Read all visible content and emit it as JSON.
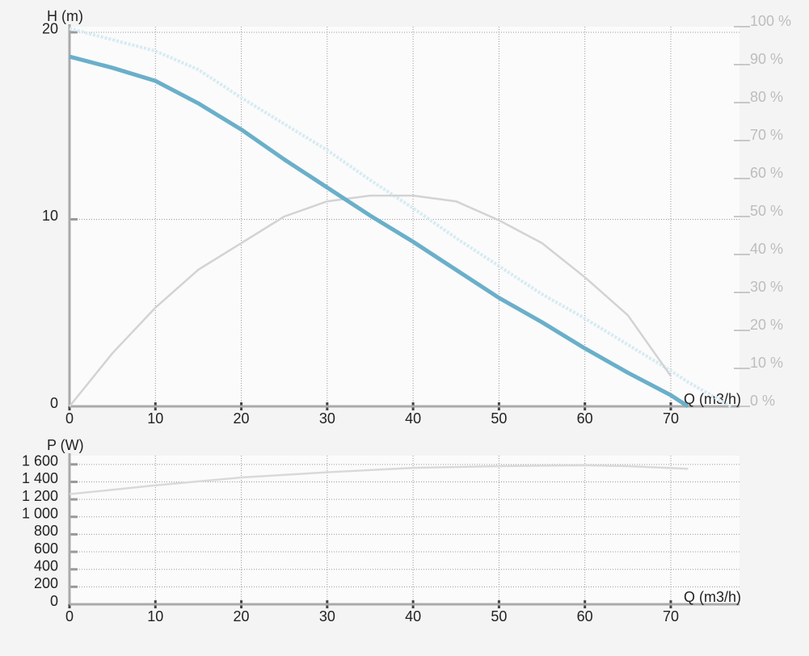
{
  "chart_data": [
    {
      "type": "line",
      "ylabel": "H (m)",
      "xlabel": "Q (m3/h)",
      "grid": true,
      "x": [
        0,
        5,
        10,
        15,
        20,
        25,
        30,
        35,
        40,
        45,
        50,
        55,
        60,
        65,
        70,
        72,
        77
      ],
      "xlim": [
        0,
        78
      ],
      "xticks": [
        0,
        10,
        20,
        30,
        40,
        50,
        60,
        70
      ],
      "ylim": [
        0,
        20.3
      ],
      "yticks": [
        0,
        10,
        20
      ],
      "y2lim": [
        0,
        100
      ],
      "y2ticks": [
        {
          "value": 0,
          "label": "0 %"
        },
        {
          "value": 10,
          "label": "10 %"
        },
        {
          "value": 20,
          "label": "20 %"
        },
        {
          "value": 30,
          "label": "30 %"
        },
        {
          "value": 40,
          "label": "40 %"
        },
        {
          "value": 50,
          "label": "50 %"
        },
        {
          "value": 60,
          "label": "60 %"
        },
        {
          "value": 70,
          "label": "70 %"
        },
        {
          "value": 80,
          "label": "80 %"
        },
        {
          "value": 90,
          "label": "90 %"
        },
        {
          "value": 100,
          "label": "100 %"
        }
      ],
      "series": [
        {
          "color": "#d6ebf3",
          "line_style": "dotted",
          "values": [
            20.2,
            19.6,
            19.0,
            18.0,
            16.5,
            15.1,
            13.7,
            12.1,
            10.6,
            9.0,
            7.5,
            6.0,
            4.7,
            3.3,
            1.9,
            1.3,
            0
          ]
        },
        {
          "color": "#d3d3d3",
          "line_style": "solid",
          "axis": "y2",
          "values": [
            0,
            14,
            26,
            36,
            43,
            50,
            54,
            55.5,
            55.5,
            54,
            49,
            43,
            34,
            24,
            8,
            null,
            null
          ]
        },
        {
          "color": "#6aafca",
          "line_style": "thick",
          "values": [
            18.7,
            18.1,
            17.4,
            16.2,
            14.8,
            13.2,
            11.7,
            10.2,
            8.8,
            7.3,
            5.8,
            4.5,
            3.1,
            1.8,
            0.6,
            0,
            null
          ]
        }
      ]
    },
    {
      "type": "line",
      "ylabel": "P (W)",
      "xlabel": "Q (m3/h)",
      "grid": true,
      "x": [
        0,
        10,
        20,
        30,
        40,
        50,
        60,
        65,
        72
      ],
      "xlim": [
        0,
        78
      ],
      "xticks": [
        0,
        10,
        20,
        30,
        40,
        50,
        60,
        70
      ],
      "ylim": [
        0,
        1700
      ],
      "yticks": [
        0,
        200,
        400,
        600,
        800,
        {
          "value": 1000,
          "label": "1 000"
        },
        {
          "value": 1200,
          "label": "1 200"
        },
        {
          "value": 1400,
          "label": "1 400"
        },
        {
          "value": 1600,
          "label": "1 600"
        }
      ],
      "series": [
        {
          "color": "#d9d9d9",
          "line_style": "solid",
          "values": [
            1260,
            1360,
            1450,
            1510,
            1560,
            1580,
            1590,
            1580,
            1550
          ]
        }
      ]
    }
  ]
}
